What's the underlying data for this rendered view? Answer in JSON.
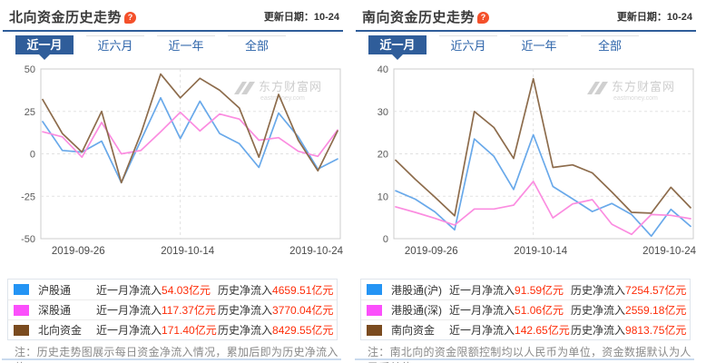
{
  "colors": {
    "accent_blue": "#2f5d9a",
    "tab_text_blue": "#2a62a8",
    "value_red": "#fe2d09",
    "line_blue": "#69a9ea",
    "line_pink": "#fb8ce0",
    "line_brown": "#8d6c4c",
    "swatch_blue": "#2494f4",
    "swatch_magenta": "#fb4ffb",
    "swatch_brown": "#7a4b1f",
    "watermark_gray": "#c9c9c9"
  },
  "panels": [
    {
      "title": "北向资金历史走势",
      "help_icon": "?",
      "update_date": "更新日期：10-24",
      "tabs": [
        {
          "label": "近一月",
          "selected": true
        },
        {
          "label": "近六月",
          "selected": false
        },
        {
          "label": "近一年",
          "selected": false
        },
        {
          "label": "全部",
          "selected": false
        }
      ],
      "watermark": {
        "brand": "东方财富网",
        "domain": "eastmoney.com"
      },
      "chart_data": {
        "type": "line",
        "ylim": [
          -50,
          50
        ],
        "yticks": [
          50,
          25,
          0,
          -25,
          -50
        ],
        "x_tick_labels": [
          "2019-09-26",
          "2019-10-14",
          "2019-10-24"
        ],
        "x_tick_pos": [
          0.125,
          0.49,
          0.92
        ],
        "v_gridline_index": 7,
        "grid": true,
        "legend_position": "bottom-table",
        "series": [
          {
            "name": "沪股通",
            "color": "#69a9ea",
            "values": [
              19,
              2,
              1,
              7.5,
              -17,
              8,
              33,
              9,
              31,
              12,
              6,
              -8,
              24,
              10,
              -9,
              -3
            ]
          },
          {
            "name": "深股通",
            "color": "#fb8ce0",
            "values": [
              13,
              10,
              -2,
              18.5,
              0,
              2,
              13,
              24.5,
              13.5,
              23.5,
              20.5,
              8,
              9.5,
              1.5,
              -1.5,
              14
            ]
          },
          {
            "name": "北向资金",
            "color": "#8d6c4c",
            "values": [
              32,
              12,
              1,
              25,
              -17,
              12,
              47,
              33,
              44.5,
              37.5,
              27,
              -2,
              35,
              8,
              -10,
              13.5
            ]
          }
        ]
      },
      "legend": {
        "rows": [
          {
            "name": "沪股通",
            "swatch": "#2494f4",
            "period_label": "近一月净流入",
            "period_value": "54.03",
            "period_unit": "亿元",
            "history_label": "历史净流入",
            "history_value": "4659.51",
            "history_unit": "亿元"
          },
          {
            "name": "深股通",
            "swatch": "#fb4ffb",
            "period_label": "近一月净流入",
            "period_value": "117.37",
            "period_unit": "亿元",
            "history_label": "历史净流入",
            "history_value": "3770.04",
            "history_unit": "亿元"
          },
          {
            "name": "北向资金",
            "swatch": "#7a4b1f",
            "period_label": "近一月净流入",
            "period_value": "171.40",
            "period_unit": "亿元",
            "history_label": "历史净流入",
            "history_value": "8429.55",
            "history_unit": "亿元"
          }
        ]
      },
      "note": "注：历史走势图展示每日资金净流入情况，累加后即为历史净流入值。"
    },
    {
      "title": "南向资金历史走势",
      "help_icon": "?",
      "update_date": "更新日期：10-24",
      "tabs": [
        {
          "label": "近一月",
          "selected": true
        },
        {
          "label": "近六月",
          "selected": false
        },
        {
          "label": "近一年",
          "selected": false
        },
        {
          "label": "全部",
          "selected": false
        }
      ],
      "watermark": {
        "brand": "东方财富网",
        "domain": "eastmoney.com"
      },
      "chart_data": {
        "type": "line",
        "ylim": [
          0,
          40
        ],
        "yticks": [
          40,
          30,
          20,
          10,
          0
        ],
        "x_tick_labels": [
          "2019-09-26",
          "2019-10-14",
          "2019-10-24"
        ],
        "x_tick_pos": [
          0.125,
          0.49,
          0.92
        ],
        "v_gridline_index": 7,
        "grid": true,
        "legend_position": "bottom-table",
        "series": [
          {
            "name": "港股通(沪)",
            "color": "#69a9ea",
            "values": [
              11.3,
              9.3,
              6.3,
              2.1,
              23.5,
              19.4,
              11.6,
              24.5,
              12.3,
              9.4,
              6.4,
              8.3,
              5.7,
              0.6,
              6.9,
              2.9
            ]
          },
          {
            "name": "港股通(深)",
            "color": "#fb8ce0",
            "values": [
              7.5,
              6.2,
              4.8,
              3.2,
              7,
              7,
              7.9,
              13.5,
              4.9,
              8.2,
              9.2,
              3.4,
              1,
              5.7,
              5.5,
              4.7
            ]
          },
          {
            "name": "南向资金",
            "color": "#8d6c4c",
            "values": [
              18.5,
              14,
              9.8,
              5.4,
              30,
              26.2,
              18.9,
              37.7,
              16.8,
              17.4,
              15.5,
              11,
              6.2,
              6,
              12.1,
              7.3
            ]
          }
        ]
      },
      "legend": {
        "rows": [
          {
            "name": "港股通(沪)",
            "swatch": "#2494f4",
            "period_label": "近一月净流入",
            "period_value": "91.59",
            "period_unit": "亿元",
            "history_label": "历史净流入",
            "history_value": "7254.57",
            "history_unit": "亿元"
          },
          {
            "name": "港股通(深)",
            "swatch": "#fb4ffb",
            "period_label": "近一月净流入",
            "period_value": "51.06",
            "period_unit": "亿元",
            "history_label": "历史净流入",
            "history_value": "2559.18",
            "history_unit": "亿元"
          },
          {
            "name": "南向资金",
            "swatch": "#7a4b1f",
            "period_label": "近一月净流入",
            "period_value": "142.65",
            "period_unit": "亿元",
            "history_label": "历史净流入",
            "history_value": "9813.75",
            "history_unit": "亿元"
          }
        ]
      },
      "note": "注：南北向的资金限额控制均以人民币为单位，资金数据默认为人民币单位。"
    }
  ]
}
